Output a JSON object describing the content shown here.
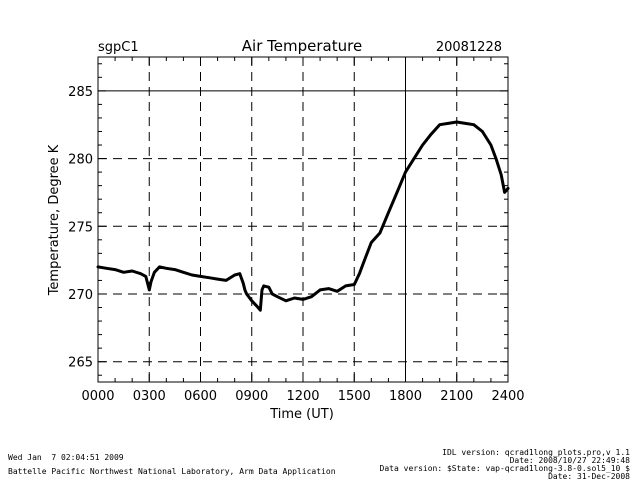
{
  "chart_data": {
    "type": "line",
    "title": "Air Temperature",
    "site": "sgpC1",
    "date": "20081228",
    "xlabel": "Time (UT)",
    "ylabel": "Temperature, Degree K",
    "xlim": [
      0,
      24
    ],
    "ylim": [
      263.5,
      287.5
    ],
    "x_ticks": [
      0,
      3,
      6,
      9,
      12,
      15,
      18,
      21,
      24
    ],
    "x_tick_labels": [
      "0000",
      "0300",
      "0600",
      "0900",
      "1200",
      "1500",
      "1800",
      "2100",
      "2400"
    ],
    "y_ticks": [
      265,
      270,
      275,
      280,
      285
    ],
    "y_tick_labels": [
      "265",
      "270",
      "275",
      "280",
      "285"
    ],
    "dashed_vlines": [
      3,
      6,
      9,
      12,
      15,
      21
    ],
    "solid_vlines": [
      18
    ],
    "dashed_hlines": [
      265,
      270,
      275,
      280
    ],
    "solid_hlines": [
      285
    ],
    "series": [
      {
        "name": "Air Temperature",
        "x": [
          0,
          0.5,
          1.0,
          1.5,
          2.0,
          2.5,
          2.8,
          3.0,
          3.1,
          3.3,
          3.6,
          4.0,
          4.5,
          5.0,
          5.5,
          6.0,
          6.5,
          7.0,
          7.5,
          8.0,
          8.3,
          8.5,
          8.6,
          8.7,
          9.0,
          9.3,
          9.5,
          9.6,
          9.7,
          10.0,
          10.2,
          10.5,
          11.0,
          11.5,
          12.0,
          12.5,
          13.0,
          13.5,
          14.0,
          14.5,
          15.0,
          15.3,
          15.6,
          16.0,
          16.5,
          17.0,
          17.5,
          18.0,
          18.5,
          19.0,
          19.5,
          20.0,
          20.5,
          21.0,
          21.5,
          22.0,
          22.5,
          23.0,
          23.3,
          23.6,
          23.8,
          24.0
        ],
        "values": [
          272.0,
          271.9,
          271.8,
          271.6,
          271.7,
          271.5,
          271.3,
          270.3,
          270.9,
          271.6,
          272.0,
          271.9,
          271.8,
          271.6,
          271.4,
          271.3,
          271.2,
          271.1,
          271.0,
          271.4,
          271.5,
          270.8,
          270.3,
          270.0,
          269.5,
          269.1,
          268.8,
          270.3,
          270.6,
          270.5,
          270.0,
          269.8,
          269.5,
          269.7,
          269.6,
          269.8,
          270.3,
          270.4,
          270.2,
          270.6,
          270.7,
          271.5,
          272.5,
          273.8,
          274.5,
          276.0,
          277.5,
          279.0,
          280.0,
          281.0,
          281.8,
          282.5,
          282.6,
          282.7,
          282.6,
          282.5,
          282.0,
          281.0,
          280.0,
          278.8,
          277.5,
          277.8
        ]
      }
    ]
  },
  "footer": {
    "timestamp": "Wed Jan  7 02:04:51 2009",
    "organization": "Battelle Pacific Northwest National Laboratory, Arm Data Application",
    "idl_version": "IDL version: qcrad1long_plots.pro,v 1.1",
    "idl_date": "Date: 2008/10/27 22:49:48",
    "data_version": "Data version: $State: vap-qcrad1long-3.8-0.sol5_10 $",
    "data_date": "Date: 31-Dec-2008"
  }
}
